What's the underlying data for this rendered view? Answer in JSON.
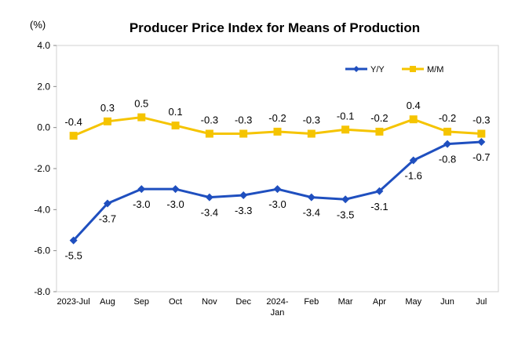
{
  "chart_data": {
    "type": "line",
    "title": "Producer Price Index for Means of Production",
    "ylabel": "(%)",
    "xlabel": "",
    "ylim": [
      -8.0,
      4.0
    ],
    "yticks": [
      "4.0",
      "2.0",
      "0.0",
      "-2.0",
      "-4.0",
      "-6.0",
      "-8.0"
    ],
    "categories": [
      "2023-Jul",
      "Aug",
      "Sep",
      "Oct",
      "Nov",
      "Dec",
      "2024-Jan",
      "Feb",
      "Mar",
      "Apr",
      "May",
      "Jun",
      "Jul"
    ],
    "category_lines": [
      [
        "2023-Jul"
      ],
      [
        "Aug"
      ],
      [
        "Sep"
      ],
      [
        "Oct"
      ],
      [
        "Nov"
      ],
      [
        "Dec"
      ],
      [
        "2024-",
        "Jan"
      ],
      [
        "Feb"
      ],
      [
        "Mar"
      ],
      [
        "Apr"
      ],
      [
        "May"
      ],
      [
        "Jun"
      ],
      [
        "Jul"
      ]
    ],
    "grid": false,
    "legend_position": "top-right",
    "series": [
      {
        "name": "Y/Y",
        "color": "#1F4FBF",
        "marker": "diamond",
        "values": [
          -5.5,
          -3.7,
          -3.0,
          -3.0,
          -3.4,
          -3.3,
          -3.0,
          -3.4,
          -3.5,
          -3.1,
          -1.6,
          -0.8,
          -0.7
        ],
        "labels": [
          "-5.5",
          "-3.7",
          "-3.0",
          "-3.0",
          "-3.4",
          "-3.3",
          "-3.0",
          "-3.4",
          "-3.5",
          "-3.1",
          "-1.6",
          "-0.8",
          "-0.7"
        ],
        "label_position": "below"
      },
      {
        "name": "M/M",
        "color": "#F5C400",
        "marker": "square",
        "values": [
          -0.4,
          0.3,
          0.5,
          0.1,
          -0.3,
          -0.3,
          -0.2,
          -0.3,
          -0.1,
          -0.2,
          0.4,
          -0.2,
          -0.3
        ],
        "labels": [
          "-0.4",
          "0.3",
          "0.5",
          "0.1",
          "-0.3",
          "-0.3",
          "-0.2",
          "-0.3",
          "-0.1",
          "-0.2",
          "0.4",
          "-0.2",
          "-0.3"
        ],
        "label_position": "above"
      }
    ]
  }
}
